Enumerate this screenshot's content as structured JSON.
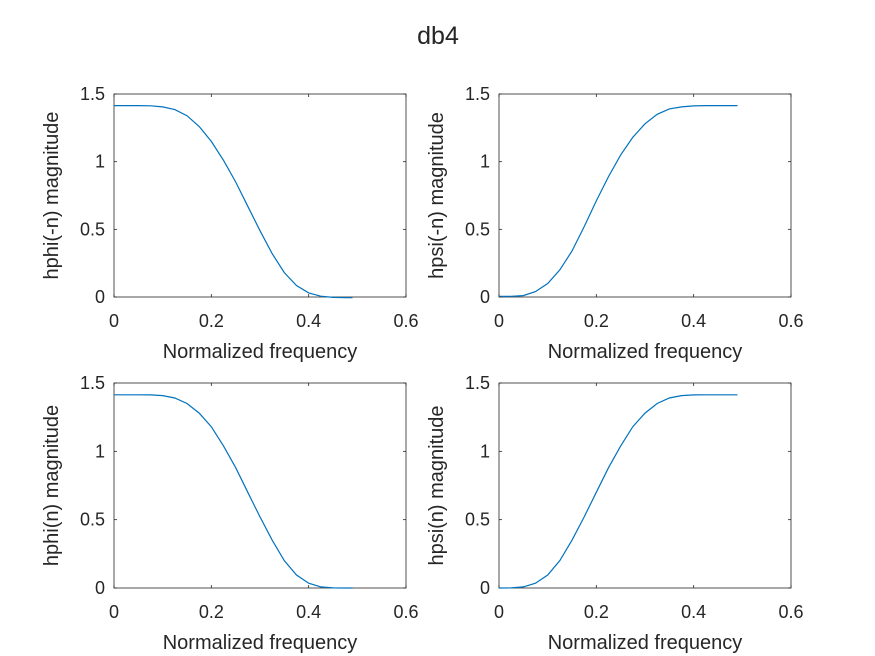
{
  "figure_title": "db4",
  "chart_data": [
    {
      "type": "line",
      "title": "",
      "xlabel": "Normalized frequency",
      "ylabel": "hphi(-n) magnitude",
      "xlim": [
        0,
        0.6
      ],
      "ylim": [
        0,
        1.5
      ],
      "xticks": [
        "0",
        "0.2",
        "0.4",
        "0.6"
      ],
      "yticks": [
        "0",
        "0.5",
        "1",
        "1.5"
      ],
      "grid": false,
      "color": "#0072BD",
      "series": [
        {
          "x": [
            0,
            0.025,
            0.05,
            0.075,
            0.1,
            0.125,
            0.15,
            0.175,
            0.2,
            0.225,
            0.25,
            0.275,
            0.3,
            0.325,
            0.35,
            0.375,
            0.4,
            0.425,
            0.45,
            0.475,
            0.49
          ],
          "y": [
            1.414,
            1.414,
            1.414,
            1.413,
            1.405,
            1.385,
            1.34,
            1.26,
            1.15,
            1.01,
            0.85,
            0.67,
            0.49,
            0.32,
            0.18,
            0.085,
            0.03,
            0.006,
            -0.003,
            -0.005,
            -0.005
          ]
        }
      ]
    },
    {
      "type": "line",
      "title": "",
      "xlabel": "Normalized frequency",
      "ylabel": "hpsi(-n) magnitude",
      "xlim": [
        0,
        0.6
      ],
      "ylim": [
        0,
        1.5
      ],
      "xticks": [
        "0",
        "0.2",
        "0.4",
        "0.6"
      ],
      "yticks": [
        "0",
        "0.5",
        "1",
        "1.5"
      ],
      "grid": false,
      "color": "#0072BD",
      "series": [
        {
          "x": [
            0,
            0.025,
            0.05,
            0.075,
            0.1,
            0.125,
            0.15,
            0.175,
            0.2,
            0.225,
            0.25,
            0.275,
            0.3,
            0.325,
            0.35,
            0.375,
            0.4,
            0.425,
            0.45,
            0.475,
            0.49
          ],
          "y": [
            0.005,
            0.005,
            0.01,
            0.04,
            0.1,
            0.2,
            0.34,
            0.52,
            0.71,
            0.89,
            1.05,
            1.18,
            1.28,
            1.35,
            1.39,
            1.405,
            1.412,
            1.414,
            1.414,
            1.414,
            1.414
          ]
        }
      ]
    },
    {
      "type": "line",
      "title": "",
      "xlabel": "Normalized frequency",
      "ylabel": "hphi(n) magnitude",
      "xlim": [
        0,
        0.6
      ],
      "ylim": [
        0,
        1.5
      ],
      "xticks": [
        "0",
        "0.2",
        "0.4",
        "0.6"
      ],
      "yticks": [
        "0",
        "0.5",
        "1",
        "1.5"
      ],
      "grid": false,
      "color": "#0072BD",
      "series": [
        {
          "x": [
            0,
            0.025,
            0.05,
            0.075,
            0.1,
            0.125,
            0.15,
            0.175,
            0.2,
            0.225,
            0.25,
            0.275,
            0.3,
            0.325,
            0.35,
            0.375,
            0.4,
            0.425,
            0.45,
            0.475,
            0.49
          ],
          "y": [
            1.414,
            1.414,
            1.414,
            1.413,
            1.408,
            1.39,
            1.35,
            1.28,
            1.18,
            1.04,
            0.88,
            0.7,
            0.52,
            0.35,
            0.2,
            0.095,
            0.035,
            0.008,
            0.001,
            0,
            0
          ]
        }
      ]
    },
    {
      "type": "line",
      "title": "",
      "xlabel": "Normalized frequency",
      "ylabel": "hpsi(n) magnitude",
      "xlim": [
        0,
        0.6
      ],
      "ylim": [
        0,
        1.5
      ],
      "xticks": [
        "0",
        "0.2",
        "0.4",
        "0.6"
      ],
      "yticks": [
        "0",
        "0.5",
        "1",
        "1.5"
      ],
      "grid": false,
      "color": "#0072BD",
      "series": [
        {
          "x": [
            0,
            0.025,
            0.05,
            0.075,
            0.1,
            0.125,
            0.15,
            0.175,
            0.2,
            0.225,
            0.25,
            0.275,
            0.3,
            0.325,
            0.35,
            0.375,
            0.4,
            0.425,
            0.45,
            0.475,
            0.49
          ],
          "y": [
            0,
            0.001,
            0.008,
            0.035,
            0.095,
            0.2,
            0.35,
            0.52,
            0.7,
            0.88,
            1.04,
            1.18,
            1.28,
            1.35,
            1.39,
            1.408,
            1.413,
            1.414,
            1.414,
            1.414,
            1.414
          ]
        }
      ]
    }
  ]
}
